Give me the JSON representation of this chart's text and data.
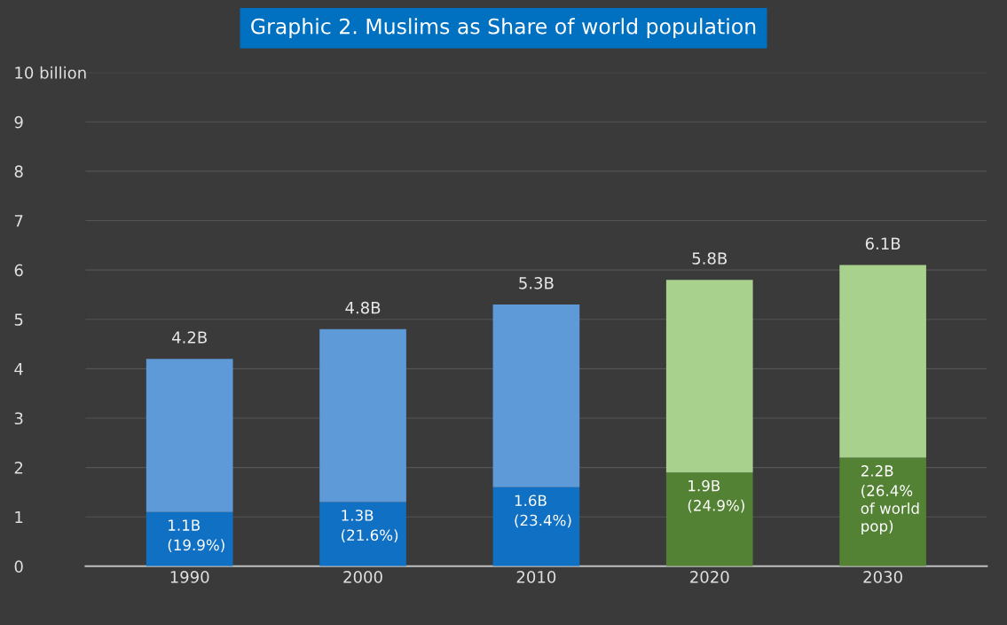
{
  "chart_data": {
    "type": "bar",
    "title": "Graphic 2. Muslims as Share of world population",
    "stacked": true,
    "categories": [
      "1990",
      "2000",
      "2010",
      "2020",
      "2030"
    ],
    "series": [
      {
        "colors": [
          "#1070c4",
          "#1070c4",
          "#1070c4",
          "#548235",
          "#548235"
        ],
        "values": [
          1.1,
          1.3,
          1.6,
          1.9,
          2.2
        ],
        "value_labels": [
          "1.1B",
          "1.3B",
          "1.6B",
          "1.9B",
          "2.2B"
        ]
      },
      {
        "colors": [
          "#5f9ad8",
          "#5f9ad8",
          "#5f9ad8",
          "#a9d18e",
          "#a9d18e"
        ],
        "values": [
          3.1,
          3.5,
          3.7,
          3.9,
          3.9
        ]
      }
    ],
    "annotations": [
      {
        "text": "(19.9%)",
        "x": "1990",
        "y": 1.1
      },
      {
        "text": "(21.6%)",
        "x": "2000",
        "y": 1.3
      },
      {
        "text": "(23.4%)",
        "x": "2010",
        "y": 1.6
      },
      {
        "text": "(24.9%)",
        "x": "2020",
        "y": 1.9
      },
      {
        "text": "(26.4%\nof world\npop)",
        "x": "2030",
        "y": 2.2
      }
    ],
    "totals": [
      "4.2B",
      "4.8B",
      "5.3B",
      "5.8B",
      "6.1B"
    ],
    "ylim": [
      0,
      10
    ],
    "yticks": [
      0,
      1,
      2,
      3,
      4,
      5,
      6,
      7,
      8,
      9,
      {
        "value": 10,
        "label": "10 billion"
      }
    ],
    "grid": "y"
  }
}
